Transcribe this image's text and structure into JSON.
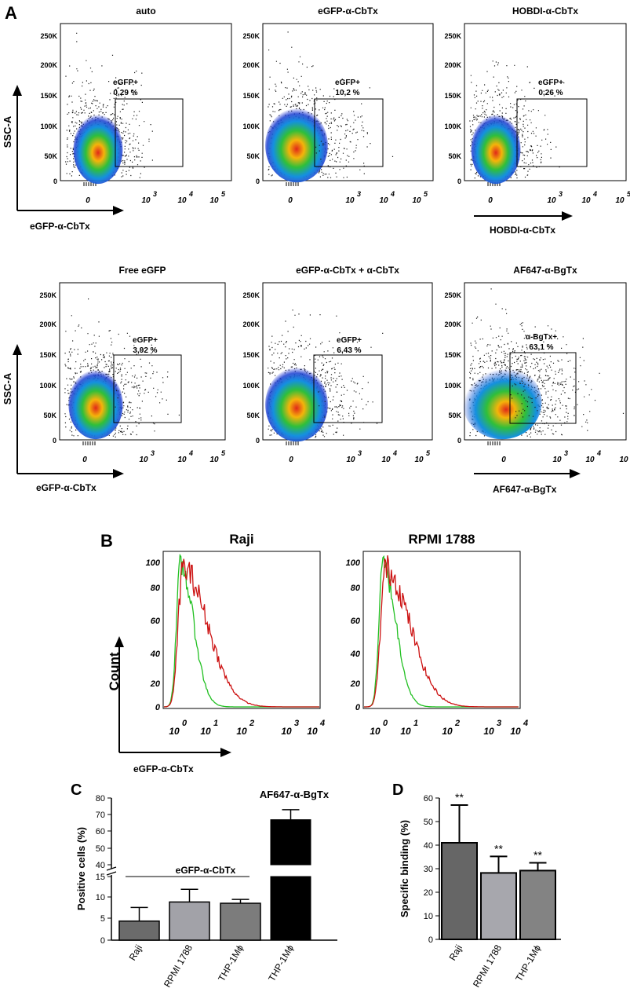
{
  "panel_labels": {
    "A": "A",
    "B": "B",
    "C": "C",
    "D": "D"
  },
  "panelA": {
    "y_axis_label": "SSC-A",
    "yticks": [
      "250K",
      "200K",
      "150K",
      "100K",
      "50K",
      "0"
    ],
    "xticks": [
      "0",
      "10",
      "10",
      "10"
    ],
    "xtick_exp": [
      "",
      "3",
      "4",
      "5"
    ],
    "axis_labels": [
      "eGFP-α-CbTx",
      "HOBDI-α-CbTx",
      "eGFP-α-CbTx",
      "AF647-α-BgTx"
    ],
    "plots": [
      {
        "title": "auto",
        "gate_label": "eGFP+",
        "gate_pct": "0,29 %"
      },
      {
        "title": "eGFP-α-CbTx",
        "gate_label": "eGFP+",
        "gate_pct": "10,2 %"
      },
      {
        "title": "HOBDI-α-CbTx",
        "gate_label": "eGFP+",
        "gate_pct": "0,26 %"
      },
      {
        "title": "Free   eGFP",
        "gate_label": "eGFP+",
        "gate_pct": "3,92 %"
      },
      {
        "title": "eGFP-α-CbTx + α-CbTx",
        "gate_label": "eGFP+",
        "gate_pct": "6,43 %"
      },
      {
        "title": "AF647-α-BgTx",
        "gate_label": "α-BgTx+",
        "gate_pct": "63,1 %"
      }
    ]
  },
  "panelB": {
    "y_axis_label": "Count",
    "x_axis_label": "eGFP-α-CbTx",
    "yticks": [
      "100",
      "80",
      "60",
      "40",
      "20",
      "0"
    ],
    "xtick_base": "10",
    "xtick_exp": [
      "0",
      "1",
      "2",
      "3",
      "4"
    ],
    "series_colors": {
      "control": "#22c022",
      "stained": "#cc1111"
    },
    "plots": [
      {
        "title": "Raji"
      },
      {
        "title": "RPMI 1788"
      }
    ]
  },
  "chart_data": [
    {
      "type": "bar",
      "panel": "C",
      "ylabel": "Positive cells (%)",
      "yticks_upper": [
        "80",
        "70",
        "60",
        "50",
        "40"
      ],
      "yticks_lower": [
        "15",
        "10",
        "5",
        "0"
      ],
      "ylim": [
        0,
        80
      ],
      "axis_break": [
        15,
        40
      ],
      "group_labels": [
        "eGFP-α-CbTx",
        "AF647-α-BgTx"
      ],
      "categories": [
        "Raji",
        "RPMI 1788",
        "THP-1Mϕ",
        "THP-1Mϕ"
      ],
      "values": [
        4.5,
        9.0,
        8.7,
        67
      ],
      "errors": [
        3.2,
        3.0,
        0.9,
        6
      ],
      "colors": [
        "#6b6b6b",
        "#a2a2a8",
        "#7c7c7c",
        "#000000"
      ]
    },
    {
      "type": "bar",
      "panel": "D",
      "ylabel": "Specific binding (%)",
      "yticks": [
        "60",
        "50",
        "40",
        "30",
        "20",
        "10",
        "0"
      ],
      "ylim": [
        0,
        60
      ],
      "categories": [
        "Raji",
        "RPMI 1788",
        "THP-1Mϕ"
      ],
      "values": [
        41,
        28.2,
        29.2
      ],
      "errors": [
        16,
        7,
        3.3
      ],
      "annotations": [
        "**",
        "**",
        "**"
      ],
      "colors": [
        "#666666",
        "#a7a7ad",
        "#838383"
      ]
    }
  ]
}
